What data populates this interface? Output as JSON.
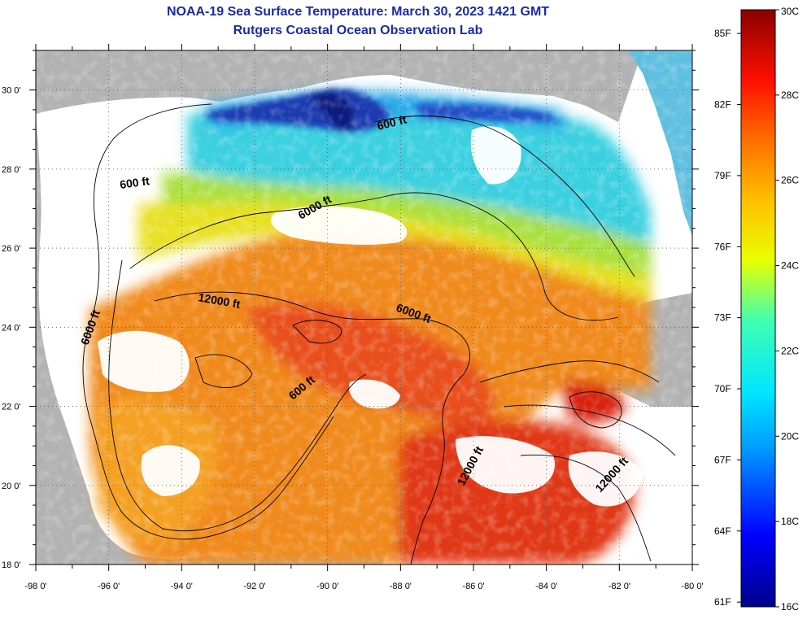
{
  "title": "NOAA-19 Sea Surface Temperature:  March 30, 2023 1421 GMT",
  "subtitle": "Rutgers Coastal Ocean Observation Lab",
  "axes": {
    "lon_ticks": [
      "-98 0'",
      "-96 0'",
      "-94 0'",
      "-92 0'",
      "-90 0'",
      "-88 0'",
      "-86 0'",
      "-84 0'",
      "-82 0'",
      "-80 0'"
    ],
    "lat_ticks": [
      "18 0'",
      "20 0'",
      "22 0'",
      "24 0'",
      "26 0'",
      "28 0'",
      "30 0'"
    ],
    "lon_range": [
      -98,
      -80
    ],
    "lat_range": [
      18,
      31
    ]
  },
  "contours": {
    "labels": [
      "600 ft",
      "600 ft",
      "6000 ft",
      "12000 ft",
      "6000 ft",
      "6000 ft",
      "600 ft",
      "12000 ft",
      "12000 ft"
    ],
    "levels_ft": [
      600,
      6000,
      12000
    ]
  },
  "colorbar": {
    "fahrenheit_labels": [
      "85F",
      "82F",
      "79F",
      "76F",
      "73F",
      "70F",
      "67F",
      "64F",
      "61F"
    ],
    "celsius_labels": [
      "30C",
      "28C",
      "26C",
      "24C",
      "22C",
      "20C",
      "18C",
      "16C"
    ],
    "range_c": [
      16,
      30
    ]
  },
  "legend_colors": {
    "land": "#b2b2b2",
    "cloud": "#ffffff",
    "warm": "#e8401a",
    "cool": "#27c6e8",
    "cold": "#1a2aa0",
    "title": "#1a2aa8"
  }
}
